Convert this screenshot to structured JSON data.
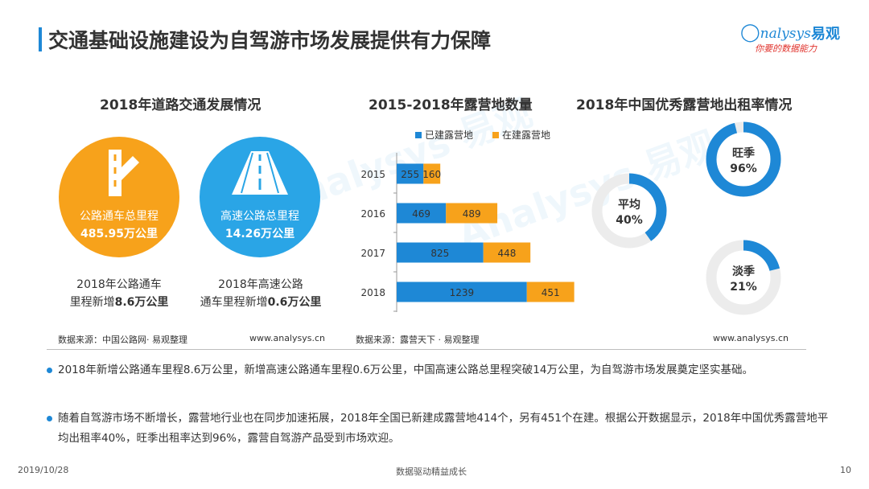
{
  "header": {
    "title": "交通基础设施建设为自驾游市场发展提供有力保障",
    "logo_en": "nalysys",
    "logo_cn": "易观",
    "logo_tagline": "你要的数据能力"
  },
  "left_panel": {
    "title": "2018年道路交通发展情况",
    "circle1": {
      "label": "公路通车总里程",
      "value": "485.95万公里",
      "color": "#f7a21b",
      "icon": "road-icon"
    },
    "circle2": {
      "label": "高速公路总里程",
      "value": "14.26万公里",
      "color": "#2aa5e6",
      "icon": "highway-icon"
    },
    "caption1": {
      "line1": "2018年公路通车",
      "line2_prefix": "里程新增",
      "line2_value": "8.6万公里"
    },
    "caption2": {
      "line1": "2018年高速公路",
      "line2_prefix": "通车里程新增",
      "line2_value": "0.6万公里"
    },
    "source": "数据来源：中国公路网· 易观整理",
    "url": "www.analysys.cn"
  },
  "middle_panel": {
    "title": "2015-2018年露营地数量",
    "source": "数据来源：露营天下 · 易观整理"
  },
  "right_panel": {
    "title": "2018年中国优秀露营地出租率情况",
    "url": "www.analysys.cn",
    "donuts": [
      {
        "label": "旺季",
        "value_text": "96%",
        "fraction": 0.96
      },
      {
        "label": "平均",
        "value_text": "40%",
        "fraction": 0.4
      },
      {
        "label": "淡季",
        "value_text": "21%",
        "fraction": 0.21
      }
    ],
    "donut_color": "#1e88d6",
    "donut_track_color": "#ececec"
  },
  "bullets": [
    "2018年新增公路通车里程8.6万公里，新增高速公路通车里程0.6万公里，中国高速公路总里程突破14万公里，为自驾游市场发展奠定坚实基础。",
    "随着自驾游市场不断增长，露营地行业也在同步加速拓展，2018年全国已新建成露营地414个，另有451个在建。根据公开数据显示，2018年中国优秀露营地平均出租率40%，旺季出租率达到96%，露营自驾游产品受到市场欢迎。"
  ],
  "footer": {
    "date": "2019/10/28",
    "slogan": "数据驱动精益成长",
    "page": "10"
  },
  "chart_data": [
    {
      "type": "bar",
      "orientation": "horizontal",
      "stacked": true,
      "title": "2015-2018年露营地数量",
      "categories": [
        "2015",
        "2016",
        "2017",
        "2018"
      ],
      "series": [
        {
          "name": "已建露营地",
          "values": [
            255,
            469,
            825,
            1239
          ],
          "color": "#1e88d6"
        },
        {
          "name": "在建露营地",
          "values": [
            160,
            489,
            448,
            451
          ],
          "color": "#f7a21b"
        }
      ],
      "legend_position": "top-left",
      "grid": false
    },
    {
      "type": "pie",
      "title": "2018年中国优秀露营地出租率情况",
      "categories": [
        "旺季",
        "平均",
        "淡季"
      ],
      "values": [
        96,
        40,
        21
      ]
    }
  ]
}
